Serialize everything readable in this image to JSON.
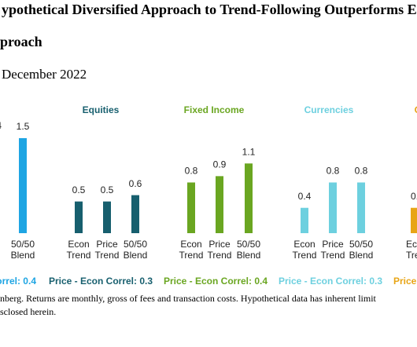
{
  "chart_data": {
    "type": "bar",
    "title": [
      "ypothetical Diversified Approach to Trend-Following Outperforms Ei",
      "proach"
    ],
    "subtitle": "December 2022",
    "groups": [
      {
        "name": null,
        "color": "#1ea5e3",
        "categories": [
          [
            "e",
            "nd"
          ],
          [
            "50/50",
            "Blend"
          ]
        ],
        "values": [
          null,
          1.5
        ],
        "value_labels": [
          "4",
          "1.5"
        ],
        "correl": "orrel: 0.4"
      },
      {
        "name": "Equities",
        "color": "#175f6e",
        "categories": [
          [
            "Econ",
            "Trend"
          ],
          [
            "Price",
            "Trend"
          ],
          [
            "50/50",
            "Blend"
          ]
        ],
        "values": [
          0.5,
          0.5,
          0.6
        ],
        "correl": "Price - Econ Correl: 0.3"
      },
      {
        "name": "Fixed Income",
        "color": "#6aa621",
        "categories": [
          [
            "Econ",
            "Trend"
          ],
          [
            "Price",
            "Trend"
          ],
          [
            "50/50",
            "Blend"
          ]
        ],
        "values": [
          0.8,
          0.9,
          1.1
        ],
        "correl": "Price - Econ Correl: 0.4"
      },
      {
        "name": "Currencies",
        "color": "#6dd0df",
        "categories": [
          [
            "Econ",
            "Trend"
          ],
          [
            "Price",
            "Trend"
          ],
          [
            "50/50",
            "Blend"
          ]
        ],
        "values": [
          0.4,
          0.8,
          0.8
        ],
        "correl": "Price - Econ Correl: 0.3"
      },
      {
        "name": "C",
        "color": "#e8a516",
        "categories": [
          [
            "Ec",
            "Tre"
          ]
        ],
        "values": [
          0.4
        ],
        "value_labels": [
          "0."
        ],
        "correl": "Price"
      }
    ],
    "footnote": [
      "nberg. Returns are monthly, gross of fees and transaction costs. Hypothetical data has inherent limit",
      "sclosed herein."
    ]
  }
}
